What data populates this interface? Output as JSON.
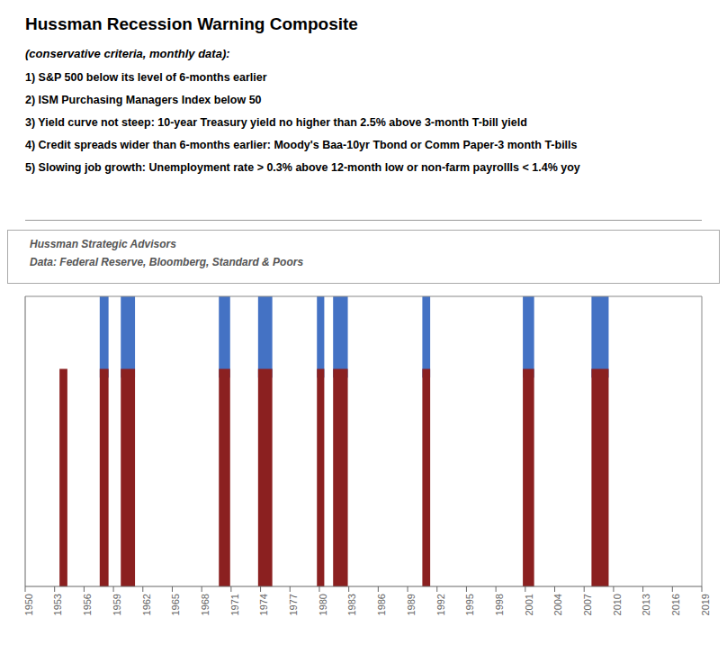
{
  "chart_data": {
    "type": "bar",
    "title": "Hussman Recession Warning Composite",
    "subtitle": "(conservative criteria, monthly data):",
    "annotations": [
      "1) S&P 500 below its level of 6-months earlier",
      "2) ISM Purchasing Managers Index below 50",
      "3) Yield curve not steep: 10-year Treasury yield no higher than 2.5% above 3-month T-bill yield",
      "4) Credit spreads wider than 6-months earlier: Moody's Baa-10yr Tbond or Comm Paper-3 month T-bills",
      "5) Slowing job growth: Unemployment rate > 0.3% above 12-month low or non-farm payrollls < 1.4% yoy"
    ],
    "source": [
      "Hussman Strategic Advisors",
      "Data: Federal Reserve, Bloomberg, Standard & Poors"
    ],
    "x_ranges": [
      [
        1953.5,
        1954.3
      ],
      [
        1957.6,
        1958.5
      ],
      [
        1959.75,
        1961.2
      ],
      [
        1969.75,
        1970.9
      ],
      [
        1973.75,
        1975.2
      ],
      [
        1979.75,
        1980.5
      ],
      [
        1981.4,
        1982.9
      ],
      [
        1990.5,
        1991.3
      ],
      [
        2000.75,
        2001.9
      ],
      [
        2007.75,
        2009.5
      ]
    ],
    "series": [
      {
        "color": "#4472C4",
        "values": [
          null,
          [
            0.72,
            1.0
          ],
          [
            0.72,
            1.0
          ],
          [
            0.72,
            1.0
          ],
          [
            0.72,
            1.0
          ],
          [
            0.72,
            1.0
          ],
          [
            0.72,
            1.0
          ],
          [
            0.72,
            1.0
          ],
          [
            0.72,
            1.0
          ],
          [
            0.72,
            1.0
          ]
        ]
      },
      {
        "color": "#8B2020",
        "values": [
          [
            0,
            0.75
          ],
          [
            0,
            0.75
          ],
          [
            0,
            0.75
          ],
          [
            0,
            0.75
          ],
          [
            0,
            0.75
          ],
          [
            0,
            0.75
          ],
          [
            0,
            0.75
          ],
          [
            0,
            0.75
          ],
          [
            0,
            0.75
          ],
          [
            0,
            0.75
          ]
        ]
      }
    ],
    "xlim": [
      1950,
      2019
    ],
    "xticks": [
      1950,
      1953,
      1956,
      1959,
      1962,
      1965,
      1968,
      1971,
      1974,
      1977,
      1980,
      1983,
      1986,
      1989,
      1992,
      1995,
      1998,
      2001,
      2004,
      2007,
      2010,
      2013,
      2016,
      2019
    ],
    "ylim": [
      0,
      1
    ],
    "grid": false,
    "tick_labels": "x"
  }
}
